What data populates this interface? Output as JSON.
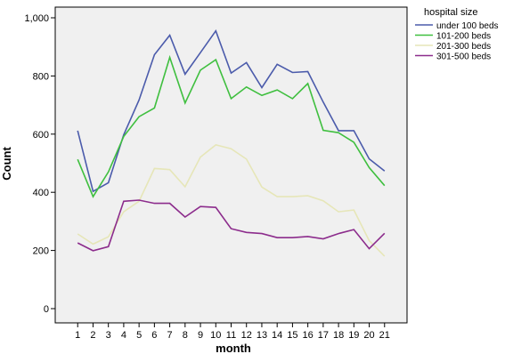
{
  "chart_data": {
    "type": "line",
    "x": [
      1,
      2,
      3,
      4,
      5,
      6,
      7,
      8,
      9,
      10,
      11,
      12,
      13,
      14,
      15,
      16,
      17,
      18,
      19,
      20,
      21
    ],
    "xlabel": "month",
    "ylabel": "Count",
    "ylim": [
      0,
      1000
    ],
    "yticks": [
      0,
      200,
      400,
      600,
      800,
      1000
    ],
    "ytick_labels": [
      "0",
      "200",
      "400",
      "600",
      "800",
      "1,000"
    ],
    "xtick_labels": [
      "1",
      "2",
      "3",
      "4",
      "5",
      "6",
      "7",
      "8",
      "9",
      "10",
      "11",
      "12",
      "13",
      "14",
      "15",
      "16",
      "17",
      "18",
      "19",
      "20",
      "21"
    ],
    "grid": false,
    "legend_title": "hospital size",
    "legend_position": "right",
    "series": [
      {
        "name": "under 100 beds",
        "color": "#4b5bab",
        "values": [
          612,
          403,
          433,
          598,
          717,
          873,
          940,
          806,
          880,
          955,
          810,
          846,
          760,
          840,
          812,
          815,
          710,
          612,
          612,
          515,
          473
        ]
      },
      {
        "name": "101-200 beds",
        "color": "#3fbf3f",
        "values": [
          513,
          385,
          470,
          592,
          660,
          690,
          864,
          707,
          820,
          856,
          722,
          762,
          733,
          752,
          722,
          774,
          613,
          605,
          572,
          485,
          423
        ]
      },
      {
        "name": "201-300 beds",
        "color": "#e6e6b8",
        "values": [
          257,
          222,
          247,
          333,
          369,
          482,
          478,
          419,
          521,
          563,
          550,
          514,
          418,
          385,
          385,
          388,
          371,
          333,
          339,
          234,
          180
        ]
      },
      {
        "name": "301-500 beds",
        "color": "#8c2c8c",
        "values": [
          226,
          199,
          213,
          369,
          373,
          362,
          362,
          315,
          351,
          348,
          275,
          262,
          258,
          244,
          244,
          248,
          240,
          258,
          272,
          206,
          259
        ]
      }
    ]
  }
}
